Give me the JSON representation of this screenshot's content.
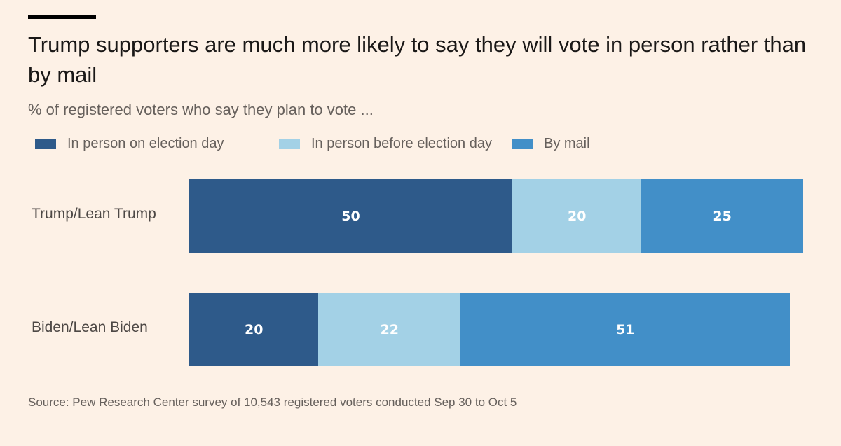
{
  "title": "Trump supporters are much more likely to say they will vote in person rather than by mail",
  "subtitle": "% of registered voters who say they plan to vote ...",
  "source": "Source: Pew Research Center survey of 10,543 registered voters conducted Sep 30 to Oct 5",
  "colors": {
    "background": "#fdf1e6",
    "in_person_election_day": "#2e5a8a",
    "in_person_before": "#a3d1e6",
    "by_mail": "#428fc8"
  },
  "chart_data": {
    "type": "bar",
    "orientation": "horizontal",
    "stacked": true,
    "title": "Trump supporters are much more likely to say they will vote in person rather than by mail",
    "subtitle": "% of registered voters who say they plan to vote ...",
    "categories": [
      "Trump/Lean Trump",
      "Biden/Lean Biden"
    ],
    "series": [
      {
        "name": "In person on election day",
        "color": "#2e5a8a",
        "values": [
          50,
          20
        ]
      },
      {
        "name": "In person before election day",
        "color": "#a3d1e6",
        "values": [
          20,
          22
        ]
      },
      {
        "name": "By mail",
        "color": "#428fc8",
        "values": [
          25,
          51
        ]
      }
    ],
    "data_labels": true,
    "legend": "top-left",
    "grid": false
  }
}
